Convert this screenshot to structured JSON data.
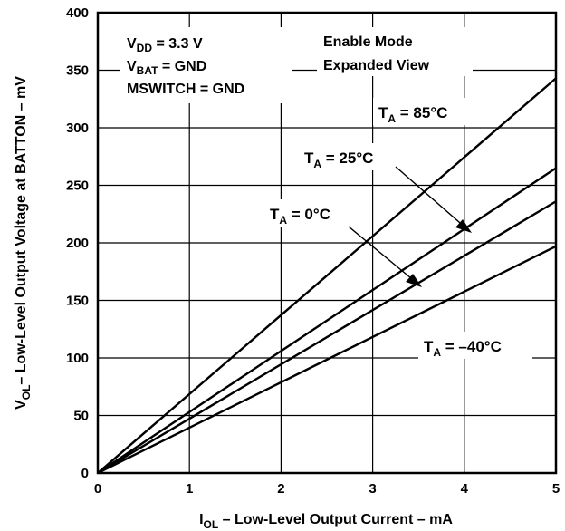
{
  "chart_data": {
    "type": "line",
    "xlabel": {
      "prefix": "I",
      "sub": "OL",
      "rest": " – Low-Level Output Current – mA"
    },
    "ylabel": {
      "prefix": "V",
      "sub": "OL",
      "rest": "– Low-Level Output Voltage at BATTON – mV"
    },
    "xlim": [
      0,
      5
    ],
    "ylim": [
      0,
      400
    ],
    "xticks": [
      "0",
      "1",
      "2",
      "3",
      "4",
      "5"
    ],
    "yticks": [
      "0",
      "50",
      "100",
      "150",
      "200",
      "250",
      "300",
      "350",
      "400"
    ],
    "grid": true,
    "conditions": [
      {
        "prefix": "V",
        "sub": "DD",
        "rest": " = 3.3 V"
      },
      {
        "prefix": "V",
        "sub": "BAT",
        "rest": " = GND"
      },
      {
        "prefix": "MSWITCH = GND",
        "sub": "",
        "rest": ""
      }
    ],
    "mode": [
      "Enable Mode",
      "Expanded View"
    ],
    "series": [
      {
        "name": "85°C",
        "label": {
          "prefix": "T",
          "sub": "A",
          "rest": " = 85°C"
        },
        "x": [
          0,
          5
        ],
        "y": [
          0,
          343
        ]
      },
      {
        "name": "25°C",
        "label": {
          "prefix": "T",
          "sub": "A",
          "rest": " = 25°C"
        },
        "x": [
          0,
          5
        ],
        "y": [
          0,
          265
        ]
      },
      {
        "name": "0°C",
        "label": {
          "prefix": "T",
          "sub": "A",
          "rest": " = 0°C"
        },
        "x": [
          0,
          5
        ],
        "y": [
          0,
          236
        ]
      },
      {
        "name": "-40°C",
        "label": {
          "prefix": "T",
          "sub": "A",
          "rest": " = –40°C"
        },
        "x": [
          0,
          5
        ],
        "y": [
          0,
          197
        ]
      }
    ]
  }
}
